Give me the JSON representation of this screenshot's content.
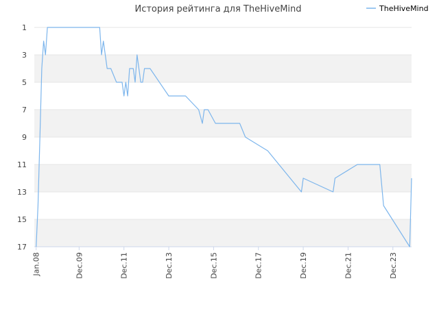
{
  "chart_data": {
    "type": "line",
    "title": "История рейтинга для TheHiveMind",
    "xlabel": "",
    "ylabel": "",
    "legend_position": "top-right",
    "y_inverted": true,
    "ylim": [
      1,
      17
    ],
    "yticks": [
      "1",
      "3",
      "5",
      "7",
      "9",
      "11",
      "13",
      "15",
      "17"
    ],
    "xticks": [
      "Jan.08",
      "Dec.09",
      "Dec.11",
      "Dec.13",
      "Dec.15",
      "Dec.17",
      "Dec.19",
      "Dec.21",
      "Dec.23"
    ],
    "xtick_dates": [
      "2008-01",
      "2009-12",
      "2011-12",
      "2013-12",
      "2015-12",
      "2017-12",
      "2019-12",
      "2021-12",
      "2023-12"
    ],
    "xlim": [
      "2007-12",
      "2024-10"
    ],
    "grid": true,
    "series": [
      {
        "name": "TheHiveMind",
        "color": "#7cb5ec",
        "points": [
          [
            "2008-01",
            17
          ],
          [
            "2008-02",
            14
          ],
          [
            "2008-03",
            9
          ],
          [
            "2008-04",
            4
          ],
          [
            "2008-05",
            2
          ],
          [
            "2008-06",
            3
          ],
          [
            "2008-07",
            1
          ],
          [
            "2010-11",
            1
          ],
          [
            "2010-12",
            3
          ],
          [
            "2011-01",
            2
          ],
          [
            "2011-03",
            4
          ],
          [
            "2011-05",
            4
          ],
          [
            "2011-08",
            5
          ],
          [
            "2011-11",
            5
          ],
          [
            "2011-12",
            6
          ],
          [
            "2012-01",
            5
          ],
          [
            "2012-02",
            6
          ],
          [
            "2012-03",
            4
          ],
          [
            "2012-05",
            4
          ],
          [
            "2012-06",
            5
          ],
          [
            "2012-07",
            3
          ],
          [
            "2012-08",
            4
          ],
          [
            "2012-09",
            5
          ],
          [
            "2012-10",
            5
          ],
          [
            "2012-11",
            4
          ],
          [
            "2013-02",
            4
          ],
          [
            "2013-12",
            6
          ],
          [
            "2014-09",
            6
          ],
          [
            "2015-04",
            7
          ],
          [
            "2015-06",
            8
          ],
          [
            "2015-07",
            7
          ],
          [
            "2015-09",
            7
          ],
          [
            "2016-01",
            8
          ],
          [
            "2017-02",
            8
          ],
          [
            "2017-05",
            9
          ],
          [
            "2018-05",
            10
          ],
          [
            "2019-11",
            13
          ],
          [
            "2019-12",
            12
          ],
          [
            "2021-04",
            13
          ],
          [
            "2021-05",
            12
          ],
          [
            "2022-05",
            11
          ],
          [
            "2023-05",
            11
          ],
          [
            "2023-07",
            14
          ],
          [
            "2024-09",
            17
          ],
          [
            "2024-10",
            12
          ]
        ]
      }
    ]
  }
}
